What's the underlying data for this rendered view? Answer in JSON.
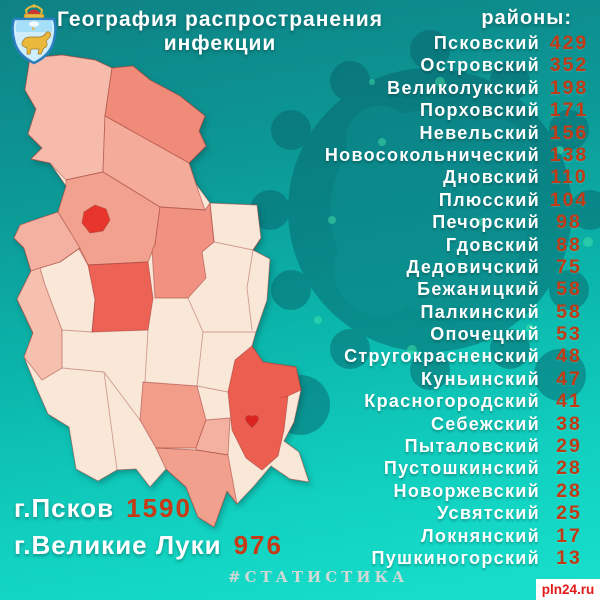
{
  "title": {
    "line1": "География распространения",
    "line2": "инфекции"
  },
  "list_heading": "районы:",
  "chart_data": {
    "type": "heatmap",
    "subtype": "choropleth-map",
    "title": "География распространения инфекции",
    "legend": "районы:",
    "categories": [
      "Псковский",
      "Островский",
      "Великолукский",
      "Порховский",
      "Невельский",
      "Новосокольнический",
      "Дновский",
      "Плюсский",
      "Печорский",
      "Гдовский",
      "Дедовичский",
      "Бежаницкий",
      "Палкинский",
      "Опочецкий",
      "Стругокрасненский",
      "Куньинский",
      "Красногородский",
      "Себежский",
      "Пыталовский",
      "Пустошкинский",
      "Новоржевский",
      "Усвятский",
      "Локнянский",
      "Пушкиногорский"
    ],
    "values": [
      429,
      352,
      198,
      171,
      156,
      138,
      110,
      104,
      98,
      88,
      75,
      58,
      58,
      53,
      48,
      47,
      41,
      38,
      29,
      28,
      28,
      25,
      17,
      13
    ],
    "cities": [
      {
        "name": "г.Псков",
        "value": "1590"
      },
      {
        "name": "г.Великие Луки",
        "value": "976"
      }
    ],
    "legend_position": "right-list",
    "color_scale_low_to_high": [
      "#f9e7d8",
      "#f6bead",
      "#f2a18f",
      "#f09181",
      "#ec6254",
      "#e7352b"
    ]
  },
  "hashtag": "#СТАТИСТИКА",
  "watermark": "pln24.ru",
  "icons": {
    "emblem": "pskov-oblast-coat-of-arms",
    "background_art": "coronavirus-particle"
  },
  "colors": {
    "background_top": "#0e8184",
    "background_bottom": "#17e0cc",
    "number_accent": "#c13a13",
    "city_number_accent": "#c63b16",
    "text": "#ffffff",
    "map_border": "#9e4038",
    "map_city_marker": "#e7352b",
    "virus_tint": "#07616a",
    "watermark_red": "#e21a1a"
  }
}
